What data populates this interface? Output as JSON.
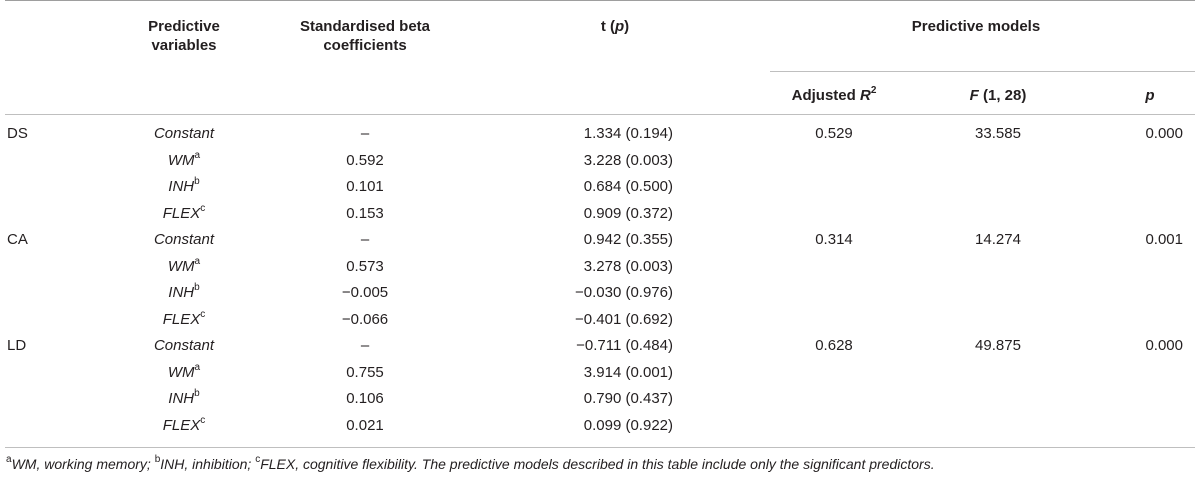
{
  "headers": {
    "predictive_variables": [
      "Predictive",
      "variables"
    ],
    "std_beta": [
      "Standardised beta",
      "coefficients"
    ],
    "t_p_prefix": "t (",
    "t_p_italic": "p",
    "t_p_suffix": ")",
    "predictive_models": "Predictive models",
    "adj_r2": "Adjusted ",
    "adj_r2_italic": "R",
    "adj_r2_sup": "2",
    "f_italic": "F",
    "f_rest": " (1, 28)",
    "p": "p"
  },
  "rows": [
    {
      "group": "DS",
      "var": "Constant",
      "sup": "",
      "beta": "–",
      "t": "1.334 (0.194)",
      "r2": "0.529",
      "f": "33.585",
      "p": "0.000"
    },
    {
      "group": "",
      "var": "WM",
      "sup": "a",
      "beta": "0.592",
      "t": "3.228 (0.003)",
      "r2": "",
      "f": "",
      "p": ""
    },
    {
      "group": "",
      "var": "INH",
      "sup": "b",
      "beta": "0.101",
      "t": "0.684 (0.500)",
      "r2": "",
      "f": "",
      "p": ""
    },
    {
      "group": "",
      "var": "FLEX",
      "sup": "c",
      "beta": "0.153",
      "t": "0.909 (0.372)",
      "r2": "",
      "f": "",
      "p": ""
    },
    {
      "group": "CA",
      "var": "Constant",
      "sup": "",
      "beta": "–",
      "t": "0.942 (0.355)",
      "r2": "0.314",
      "f": "14.274",
      "p": "0.001"
    },
    {
      "group": "",
      "var": "WM",
      "sup": "a",
      "beta": "0.573",
      "t": "3.278 (0.003)",
      "r2": "",
      "f": "",
      "p": ""
    },
    {
      "group": "",
      "var": "INH",
      "sup": "b",
      "beta": "−0.005",
      "t": "−0.030 (0.976)",
      "r2": "",
      "f": "",
      "p": ""
    },
    {
      "group": "",
      "var": "FLEX",
      "sup": "c",
      "beta": "−0.066",
      "t": "−0.401 (0.692)",
      "r2": "",
      "f": "",
      "p": ""
    },
    {
      "group": "LD",
      "var": "Constant",
      "sup": "",
      "beta": "–",
      "t": "−0.711 (0.484)",
      "r2": "0.628",
      "f": "49.875",
      "p": "0.000"
    },
    {
      "group": "",
      "var": "WM",
      "sup": "a",
      "beta": "0.755",
      "t": "3.914 (0.001)",
      "r2": "",
      "f": "",
      "p": ""
    },
    {
      "group": "",
      "var": "INH",
      "sup": "b",
      "beta": "0.106",
      "t": "0.790 (0.437)",
      "r2": "",
      "f": "",
      "p": ""
    },
    {
      "group": "",
      "var": "FLEX",
      "sup": "c",
      "beta": "0.021",
      "t": "0.099 (0.922)",
      "r2": "",
      "f": "",
      "p": ""
    }
  ],
  "footnote": {
    "a_sup": "a",
    "a_text": "WM, working memory; ",
    "b_sup": "b",
    "b_text": "INH, inhibition; ",
    "c_sup": "c",
    "c_text": "FLEX, cognitive flexibility. The predictive models described in this table include only the significant predictors."
  }
}
